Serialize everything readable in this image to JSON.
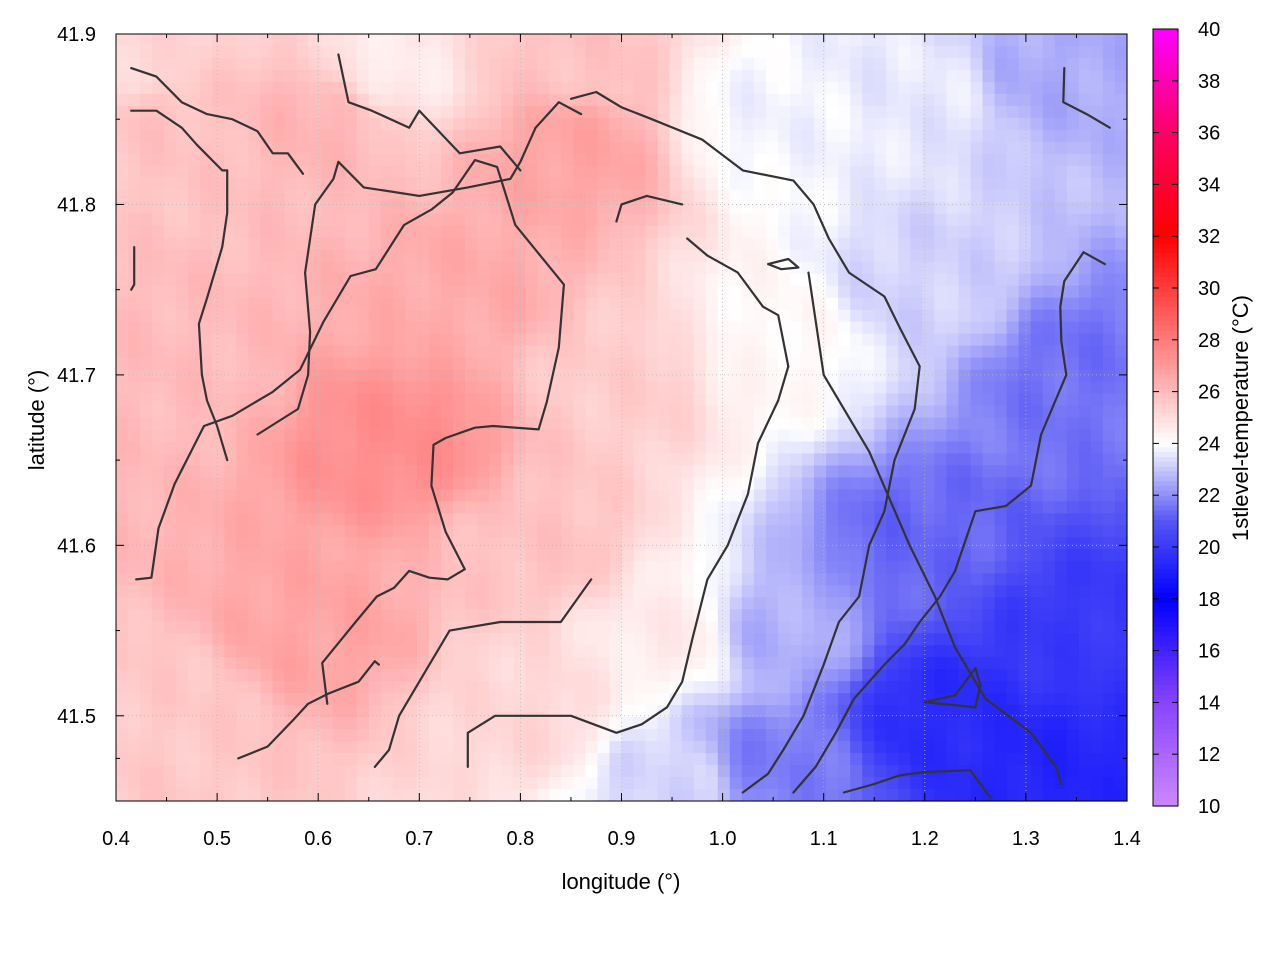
{
  "chart_data": {
    "type": "heatmap",
    "xlabel": "longitude (°)",
    "ylabel": "latitude (°)",
    "colorbar_label": "1stlevel-temperature (°C)",
    "xlim": [
      0.4,
      1.4
    ],
    "ylim": [
      41.45,
      41.9
    ],
    "x_ticks": [
      "0.4",
      "0.5",
      "0.6",
      "0.7",
      "0.8",
      "0.9",
      "1.0",
      "1.1",
      "1.2",
      "1.3",
      "1.4"
    ],
    "y_ticks": [
      "41.5",
      "41.6",
      "41.7",
      "41.8",
      "41.9"
    ],
    "colorbar_range": [
      10,
      40
    ],
    "colorbar_ticks": [
      "10",
      "12",
      "14",
      "16",
      "18",
      "20",
      "22",
      "24",
      "26",
      "28",
      "30",
      "32",
      "34",
      "36",
      "38",
      "40"
    ],
    "colormap_stops": [
      {
        "value": 10,
        "color": "#cc88ff"
      },
      {
        "value": 14,
        "color": "#8844ff"
      },
      {
        "value": 18,
        "color": "#0000ff"
      },
      {
        "value": 21,
        "color": "#5555f5"
      },
      {
        "value": 24,
        "color": "#ffffff"
      },
      {
        "value": 27,
        "color": "#ff9a9a"
      },
      {
        "value": 32,
        "color": "#ff0000"
      },
      {
        "value": 36,
        "color": "#ff0066"
      },
      {
        "value": 40,
        "color": "#ff00ff"
      }
    ],
    "grid": true,
    "temperature_field_anchors": [
      {
        "lon": 0.45,
        "lat": 41.85,
        "t": 25.8
      },
      {
        "lon": 0.45,
        "lat": 41.7,
        "t": 26.0
      },
      {
        "lon": 0.45,
        "lat": 41.5,
        "t": 25.6
      },
      {
        "lon": 0.6,
        "lat": 41.85,
        "t": 26.2
      },
      {
        "lon": 0.68,
        "lat": 41.66,
        "t": 27.4
      },
      {
        "lon": 0.6,
        "lat": 41.55,
        "t": 26.7
      },
      {
        "lon": 0.75,
        "lat": 41.75,
        "t": 26.5
      },
      {
        "lon": 0.85,
        "lat": 41.83,
        "t": 26.7
      },
      {
        "lon": 0.82,
        "lat": 41.6,
        "t": 25.8
      },
      {
        "lon": 0.9,
        "lat": 41.7,
        "t": 25.5
      },
      {
        "lon": 0.95,
        "lat": 41.55,
        "t": 24.6
      },
      {
        "lon": 0.8,
        "lat": 41.5,
        "t": 25.2
      },
      {
        "lon": 0.95,
        "lat": 41.46,
        "t": 23.3
      },
      {
        "lon": 1.05,
        "lat": 41.85,
        "t": 23.8
      },
      {
        "lon": 1.05,
        "lat": 41.72,
        "t": 24.2
      },
      {
        "lon": 1.05,
        "lat": 41.55,
        "t": 22.6
      },
      {
        "lon": 1.05,
        "lat": 41.47,
        "t": 21.7
      },
      {
        "lon": 1.2,
        "lat": 41.87,
        "t": 23.6
      },
      {
        "lon": 1.2,
        "lat": 41.75,
        "t": 23.2
      },
      {
        "lon": 1.2,
        "lat": 41.6,
        "t": 21.3
      },
      {
        "lon": 1.22,
        "lat": 41.5,
        "t": 19.5
      },
      {
        "lon": 1.32,
        "lat": 41.88,
        "t": 22.5
      },
      {
        "lon": 1.35,
        "lat": 41.7,
        "t": 21.5
      },
      {
        "lon": 1.35,
        "lat": 41.55,
        "t": 20.0
      },
      {
        "lon": 1.32,
        "lat": 41.47,
        "t": 19.3
      },
      {
        "lon": 0.42,
        "lat": 41.88,
        "t": 25.2
      },
      {
        "lon": 0.67,
        "lat": 41.88,
        "t": 24.6
      },
      {
        "lon": 0.85,
        "lat": 41.89,
        "t": 25.8
      }
    ],
    "contour_lines": [
      [
        [
          0.42,
          41.58
        ],
        [
          0.435,
          41.581
        ],
        [
          0.442,
          41.61
        ],
        [
          0.458,
          41.636
        ],
        [
          0.487,
          41.67
        ],
        [
          0.515,
          41.676
        ],
        [
          0.555,
          41.69
        ],
        [
          0.582,
          41.703
        ],
        [
          0.605,
          41.731
        ],
        [
          0.632,
          41.758
        ],
        [
          0.657,
          41.762
        ],
        [
          0.685,
          41.788
        ],
        [
          0.712,
          41.797
        ],
        [
          0.733,
          41.807
        ],
        [
          0.755,
          41.826
        ],
        [
          0.777,
          41.822
        ],
        [
          0.795,
          41.788
        ],
        [
          0.843,
          41.753
        ],
        [
          0.838,
          41.716
        ],
        [
          0.826,
          41.684
        ],
        [
          0.818,
          41.668
        ],
        [
          0.773,
          41.67
        ],
        [
          0.755,
          41.669
        ],
        [
          0.726,
          41.663
        ],
        [
          0.714,
          41.659
        ],
        [
          0.712,
          41.635
        ],
        [
          0.726,
          41.608
        ],
        [
          0.745,
          41.586
        ],
        [
          0.728,
          41.58
        ],
        [
          0.71,
          41.581
        ],
        [
          0.69,
          41.585
        ],
        [
          0.675,
          41.575
        ],
        [
          0.658,
          41.57
        ],
        [
          0.637,
          41.555
        ],
        [
          0.604,
          41.531
        ],
        [
          0.609,
          41.507
        ]
      ],
      [
        [
          0.521,
          41.475
        ],
        [
          0.55,
          41.482
        ],
        [
          0.576,
          41.498
        ],
        [
          0.59,
          41.507
        ],
        [
          0.61,
          41.513
        ],
        [
          0.64,
          41.52
        ],
        [
          0.656,
          41.532
        ],
        [
          0.66,
          41.53
        ]
      ],
      [
        [
          0.656,
          41.47
        ],
        [
          0.67,
          41.48
        ],
        [
          0.68,
          41.5
        ],
        [
          0.71,
          41.53
        ],
        [
          0.73,
          41.55
        ],
        [
          0.78,
          41.555
        ],
        [
          0.84,
          41.555
        ],
        [
          0.87,
          41.58
        ]
      ],
      [
        [
          0.748,
          41.47
        ],
        [
          0.748,
          41.49
        ],
        [
          0.775,
          41.5
        ],
        [
          0.805,
          41.5
        ],
        [
          0.85,
          41.5
        ],
        [
          0.895,
          41.49
        ],
        [
          0.92,
          41.495
        ],
        [
          0.945,
          41.505
        ],
        [
          0.96,
          41.52
        ],
        [
          0.97,
          41.545
        ],
        [
          0.985,
          41.58
        ],
        [
          1.005,
          41.6
        ],
        [
          1.025,
          41.63
        ],
        [
          1.035,
          41.66
        ],
        [
          1.055,
          41.685
        ],
        [
          1.065,
          41.705
        ]
      ],
      [
        [
          1.065,
          41.705
        ],
        [
          1.055,
          41.735
        ],
        [
          1.04,
          41.74
        ],
        [
          1.015,
          41.76
        ],
        [
          0.985,
          41.77
        ],
        [
          0.965,
          41.78
        ]
      ],
      [
        [
          0.895,
          41.79
        ],
        [
          0.9,
          41.8
        ],
        [
          0.925,
          41.805
        ],
        [
          0.96,
          41.8
        ]
      ],
      [
        [
          0.415,
          41.855
        ],
        [
          0.44,
          41.855
        ],
        [
          0.465,
          41.845
        ],
        [
          0.48,
          41.835
        ],
        [
          0.505,
          41.82
        ],
        [
          0.51,
          41.82
        ],
        [
          0.51,
          41.795
        ],
        [
          0.505,
          41.775
        ],
        [
          0.49,
          41.745
        ],
        [
          0.482,
          41.73
        ],
        [
          0.485,
          41.7
        ],
        [
          0.49,
          41.685
        ],
        [
          0.5,
          41.67
        ],
        [
          0.51,
          41.65
        ]
      ],
      [
        [
          0.54,
          41.665
        ],
        [
          0.58,
          41.68
        ],
        [
          0.59,
          41.7
        ],
        [
          0.592,
          41.725
        ],
        [
          0.587,
          41.76
        ],
        [
          0.597,
          41.8
        ],
        [
          0.615,
          41.815
        ],
        [
          0.62,
          41.825
        ],
        [
          0.645,
          41.81
        ],
        [
          0.7,
          41.805
        ],
        [
          0.748,
          41.81
        ],
        [
          0.79,
          41.815
        ],
        [
          0.8,
          41.825
        ],
        [
          0.815,
          41.845
        ],
        [
          0.838,
          41.86
        ],
        [
          0.86,
          41.853
        ]
      ],
      [
        [
          0.415,
          41.88
        ],
        [
          0.44,
          41.875
        ],
        [
          0.465,
          41.86
        ],
        [
          0.49,
          41.853
        ],
        [
          0.515,
          41.85
        ],
        [
          0.54,
          41.843
        ],
        [
          0.555,
          41.83
        ],
        [
          0.57,
          41.83
        ],
        [
          0.585,
          41.818
        ]
      ],
      [
        [
          0.62,
          41.888
        ],
        [
          0.63,
          41.86
        ],
        [
          0.653,
          41.855
        ],
        [
          0.69,
          41.845
        ],
        [
          0.7,
          41.855
        ],
        [
          0.74,
          41.83
        ],
        [
          0.78,
          41.834
        ],
        [
          0.8,
          41.82
        ]
      ],
      [
        [
          0.85,
          41.862
        ],
        [
          0.875,
          41.866
        ],
        [
          0.9,
          41.857
        ],
        [
          0.93,
          41.85
        ],
        [
          0.98,
          41.838
        ],
        [
          1.02,
          41.82
        ],
        [
          1.07,
          41.814
        ],
        [
          1.09,
          41.8
        ],
        [
          1.105,
          41.78
        ],
        [
          1.125,
          41.76
        ],
        [
          1.16,
          41.746
        ],
        [
          1.175,
          41.728
        ],
        [
          1.195,
          41.705
        ],
        [
          1.19,
          41.68
        ],
        [
          1.17,
          41.65
        ],
        [
          1.16,
          41.62
        ],
        [
          1.145,
          41.6
        ],
        [
          1.135,
          41.57
        ],
        [
          1.115,
          41.555
        ],
        [
          1.1,
          41.53
        ],
        [
          1.08,
          41.5
        ],
        [
          1.06,
          41.48
        ],
        [
          1.045,
          41.466
        ],
        [
          1.02,
          41.455
        ]
      ],
      [
        [
          1.12,
          41.455
        ],
        [
          1.15,
          41.46
        ],
        [
          1.175,
          41.465
        ],
        [
          1.2,
          41.467
        ],
        [
          1.245,
          41.468
        ],
        [
          1.265,
          41.452
        ]
      ],
      [
        [
          1.2,
          41.508
        ],
        [
          1.23,
          41.512
        ],
        [
          1.25,
          41.528
        ],
        [
          1.255,
          41.518
        ],
        [
          1.25,
          41.505
        ],
        [
          1.2,
          41.508
        ]
      ],
      [
        [
          1.045,
          41.765
        ],
        [
          1.065,
          41.768
        ],
        [
          1.075,
          41.763
        ],
        [
          1.058,
          41.762
        ],
        [
          1.045,
          41.765
        ]
      ],
      [
        [
          0.415,
          41.75
        ],
        [
          0.418,
          41.753
        ],
        [
          0.418,
          41.775
        ]
      ],
      [
        [
          1.085,
          41.76
        ],
        [
          1.1,
          41.7
        ],
        [
          1.145,
          41.655
        ],
        [
          1.185,
          41.6
        ],
        [
          1.21,
          41.57
        ],
        [
          1.23,
          41.54
        ],
        [
          1.26,
          41.51
        ],
        [
          1.305,
          41.49
        ],
        [
          1.33,
          41.47
        ],
        [
          1.335,
          41.46
        ]
      ],
      [
        [
          1.338,
          41.88
        ],
        [
          1.337,
          41.86
        ],
        [
          1.36,
          41.853
        ],
        [
          1.383,
          41.845
        ]
      ],
      [
        [
          1.378,
          41.765
        ],
        [
          1.357,
          41.772
        ],
        [
          1.338,
          41.755
        ],
        [
          1.334,
          41.74
        ],
        [
          1.335,
          41.72
        ],
        [
          1.34,
          41.7
        ],
        [
          1.315,
          41.665
        ],
        [
          1.305,
          41.635
        ],
        [
          1.28,
          41.623
        ],
        [
          1.25,
          41.62
        ],
        [
          1.23,
          41.585
        ],
        [
          1.215,
          41.57
        ],
        [
          1.195,
          41.555
        ],
        [
          1.18,
          41.542
        ],
        [
          1.16,
          41.53
        ],
        [
          1.13,
          41.51
        ],
        [
          1.112,
          41.49
        ],
        [
          1.092,
          41.47
        ],
        [
          1.07,
          41.455
        ]
      ]
    ]
  }
}
